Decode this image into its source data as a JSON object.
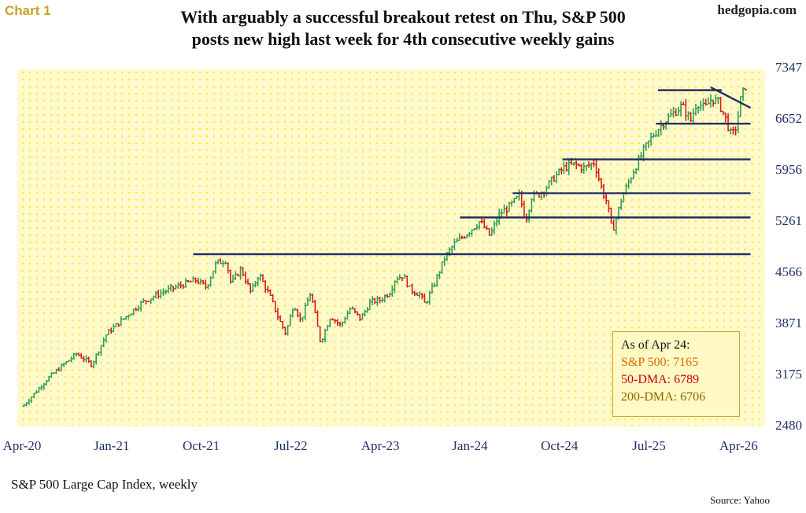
{
  "header": {
    "chart_label": "Chart 1",
    "site": "hedgopia.com",
    "title_line1": "With arguably a successful breakout retest on Thu, S&P 500",
    "title_line2": "posts new high last week for 4th consecutive weekly gains"
  },
  "footer": {
    "subtitle": "S&P 500 Large Cap Index, weekly",
    "source": "Source: Yahoo"
  },
  "legend": {
    "heading": "As of Apr 24:",
    "sp500": "S&P 500: 7165",
    "dma50": "50-DMA: 6789",
    "dma200": "200-DMA: 6706"
  },
  "colors": {
    "plot_bg": "#fffacd",
    "dots": "#ffe94d",
    "up": "#2e9e57",
    "down": "#d81b1b",
    "line": "#1f2f66",
    "axis_text": "#1f2f66",
    "legend_border": "#c9a227",
    "legend_heading": "#111111",
    "legend_sp500": "#e06a00",
    "legend_dma50": "#cc0000",
    "legend_dma200": "#8a6a00"
  },
  "chart_data": {
    "type": "line",
    "title": "With arguably a successful breakout retest on Thu, S&P 500 posts new high last week for 4th consecutive weekly gains",
    "xlabel": "",
    "ylabel": "",
    "style": "weekly OHLC bars",
    "x_ticks": [
      "Apr-20",
      "Jan-21",
      "Oct-21",
      "Jul-22",
      "Apr-23",
      "Jan-24",
      "Oct-24",
      "Jul-25",
      "Apr-26"
    ],
    "y_ticks": [
      2480,
      3175,
      3871,
      4566,
      5261,
      5956,
      6652,
      7347
    ],
    "ylim": [
      2480,
      7347
    ],
    "x_range_months": [
      0,
      73
    ],
    "anchors": [
      [
        0.2,
        2750
      ],
      [
        2.5,
        3100
      ],
      [
        4,
        3280
      ],
      [
        5.5,
        3450
      ],
      [
        7,
        3300
      ],
      [
        8.5,
        3720
      ],
      [
        10,
        3900
      ],
      [
        12,
        4140
      ],
      [
        14,
        4280
      ],
      [
        16,
        4380
      ],
      [
        17.5,
        4450
      ],
      [
        18.5,
        4350
      ],
      [
        19.5,
        4680
      ],
      [
        20.5,
        4720
      ],
      [
        21,
        4400
      ],
      [
        22,
        4600
      ],
      [
        23,
        4280
      ],
      [
        23.8,
        4530
      ],
      [
        25,
        4200
      ],
      [
        25.8,
        3920
      ],
      [
        26.5,
        3720
      ],
      [
        27.3,
        4130
      ],
      [
        28,
        3890
      ],
      [
        29,
        4280
      ],
      [
        30,
        3600
      ],
      [
        31,
        3960
      ],
      [
        32,
        3830
      ],
      [
        33,
        4070
      ],
      [
        34,
        3920
      ],
      [
        35,
        4150
      ],
      [
        36,
        4180
      ],
      [
        37,
        4290
      ],
      [
        37.5,
        4470
      ],
      [
        38.3,
        4510
      ],
      [
        39,
        4320
      ],
      [
        40,
        4250
      ],
      [
        40.5,
        4120
      ],
      [
        41.5,
        4420
      ],
      [
        42.5,
        4760
      ],
      [
        43.5,
        4950
      ],
      [
        45,
        5120
      ],
      [
        46,
        5250
      ],
      [
        47,
        5050
      ],
      [
        48,
        5350
      ],
      [
        49,
        5450
      ],
      [
        50,
        5600
      ],
      [
        50.6,
        5250
      ],
      [
        51.2,
        5580
      ],
      [
        52,
        5620
      ],
      [
        52.8,
        5730
      ],
      [
        53.5,
        5850
      ],
      [
        54.5,
        5980
      ],
      [
        55.5,
        6020
      ],
      [
        56.5,
        5970
      ],
      [
        57.5,
        6050
      ],
      [
        58.3,
        5660
      ],
      [
        58.8,
        5500
      ],
      [
        59.3,
        5100
      ],
      [
        60.3,
        5580
      ],
      [
        61.5,
        5950
      ],
      [
        62.5,
        6220
      ],
      [
        63.3,
        6400
      ],
      [
        64.5,
        6600
      ],
      [
        65.3,
        6700
      ],
      [
        66.3,
        6820
      ],
      [
        67.2,
        6620
      ],
      [
        67.8,
        6870
      ],
      [
        68.6,
        6780
      ],
      [
        69.3,
        6920
      ],
      [
        70,
        6860
      ],
      [
        70.7,
        6640
      ],
      [
        71.3,
        6400
      ],
      [
        71.8,
        6550
      ],
      [
        72.2,
        6900
      ],
      [
        72.9,
        7165
      ]
    ],
    "annotations": {
      "horizontal_lines": [
        {
          "from": 17.2,
          "to": 73.2,
          "value": 4800
        },
        {
          "from": 44,
          "to": 73.2,
          "value": 5300
        },
        {
          "from": 49.3,
          "to": 73.2,
          "value": 5630
        },
        {
          "from": 54.3,
          "to": 73.2,
          "value": 6090
        },
        {
          "from": 63.7,
          "to": 73.2,
          "value": 6575
        },
        {
          "from": 63.9,
          "to": 70.3,
          "value": 7030
        }
      ],
      "trendline": {
        "x": [
          69.2,
          73.2
        ],
        "y": [
          7070,
          6790
        ]
      }
    },
    "legend": {
      "as_of": "Apr 24",
      "sp500": 7165,
      "dma50": 6789,
      "dma200": 6706,
      "placement": "bottom-right"
    }
  }
}
